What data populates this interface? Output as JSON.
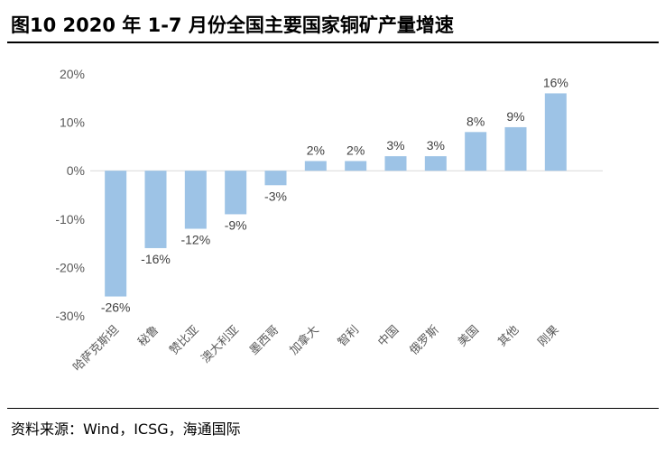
{
  "header": {
    "title": "图10 2020 年 1-7 月份全国主要国家铜矿产量增速"
  },
  "footer": {
    "source": "资料来源：Wind，ICSG，海通国际"
  },
  "chart_data": {
    "type": "bar",
    "categories": [
      "哈萨克斯坦",
      "秘鲁",
      "赞比亚",
      "澳大利亚",
      "墨西哥",
      "加拿大",
      "智利",
      "中国",
      "俄罗斯",
      "美国",
      "其他",
      "刚果"
    ],
    "values": [
      -26,
      -16,
      -12,
      -9,
      -3,
      2,
      2,
      3,
      3,
      8,
      9,
      16
    ],
    "data_labels": [
      "-26%",
      "-16%",
      "-12%",
      "-9%",
      "-3%",
      "2%",
      "2%",
      "3%",
      "3%",
      "8%",
      "9%",
      "16%"
    ],
    "yticks": [
      "20%",
      "10%",
      "0%",
      "-10%",
      "-20%",
      "-30%"
    ],
    "ylim": [
      -30,
      20
    ],
    "bar_color": "#9DC3E6",
    "grid": false,
    "legend": "none"
  }
}
